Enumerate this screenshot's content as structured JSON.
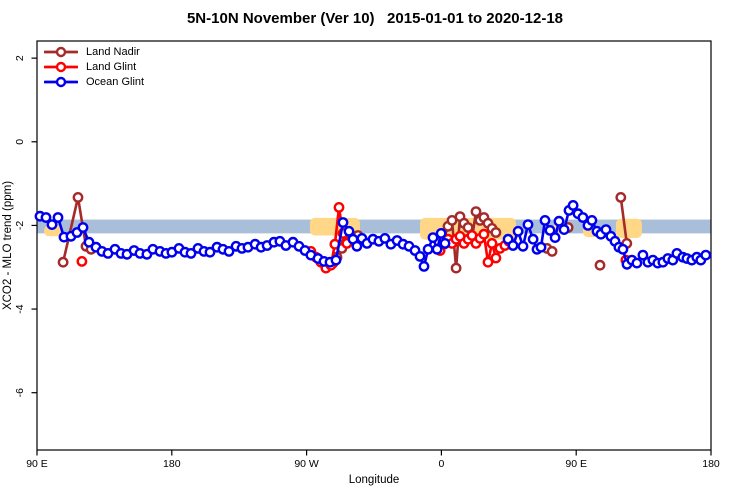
{
  "chart": {
    "title": "5N-10N November (Ver 10)   2015-01-01 to 2020-12-18"
  },
  "chart_data": {
    "type": "line",
    "title": "5N-10N November (Ver 10)   2015-01-01 to 2020-12-18",
    "xlabel": "Longitude",
    "ylabel": "XCO2 - MLO trend (ppm)",
    "grid": false,
    "legend_position": "top-left",
    "x_axis": {
      "domain": [
        0,
        450
      ],
      "ticks": [
        {
          "u": 0,
          "label": "90 E"
        },
        {
          "u": 90,
          "label": "180"
        },
        {
          "u": 180,
          "label": "90 W"
        },
        {
          "u": 270,
          "label": "0"
        },
        {
          "u": 360,
          "label": "90 E"
        },
        {
          "u": 450,
          "label": "180"
        }
      ]
    },
    "y_axis": {
      "domain": [
        -7.37,
        2.41
      ],
      "ticks": [
        2,
        0,
        -2,
        -4,
        -6
      ]
    },
    "reference_band": {
      "y_from": -1.86,
      "y_to": -2.19,
      "color": "#A9BED9"
    },
    "highlight_patches": [
      {
        "u_from": 4.7,
        "u_to": 16.7,
        "y_from": -2.0,
        "y_to": -2.26,
        "color": "#FFD786"
      },
      {
        "u_from": 182.2,
        "u_to": 215.6,
        "y_from": -1.82,
        "y_to": -2.24,
        "color": "#FFD786"
      },
      {
        "u_from": 255.7,
        "u_to": 319.8,
        "y_from": -1.82,
        "y_to": -2.34,
        "color": "#FFD786"
      },
      {
        "u_from": 345.2,
        "u_to": 355.9,
        "y_from": -1.9,
        "y_to": -2.18,
        "color": "#FFD786"
      },
      {
        "u_from": 364.5,
        "u_to": 376.5,
        "y_from": -2.02,
        "y_to": -2.28,
        "color": "#FFD786"
      },
      {
        "u_from": 386.5,
        "u_to": 403.9,
        "y_from": -1.84,
        "y_to": -2.3,
        "color": "#FFD786"
      }
    ],
    "series": [
      {
        "name": "Land Nadir",
        "color": "#A52A2A",
        "segments": [
          [
            [
              17.4,
              -2.88
            ],
            [
              27.4,
              -1.33
            ],
            [
              32.7,
              -2.5
            ],
            [
              36.1,
              -2.57
            ]
          ],
          [
            [
              197.6,
              -2.9
            ],
            [
              200.3,
              -2.76
            ],
            [
              203.6,
              -2.55
            ],
            [
              206.3,
              -2.4
            ],
            [
              208.9,
              -2.21
            ],
            [
              211.6,
              -2.31
            ],
            [
              214.3,
              -2.24
            ]
          ],
          [
            [
              271.8,
              -2.31
            ],
            [
              274.4,
              -2.02
            ],
            [
              277.1,
              -1.88
            ],
            [
              279.8,
              -3.02
            ],
            [
              282.4,
              -1.79
            ],
            [
              285.1,
              -1.95
            ],
            [
              287.8,
              -2.05
            ],
            [
              290.4,
              -2.31
            ],
            [
              293.1,
              -1.67
            ],
            [
              295.8,
              -1.88
            ],
            [
              298.4,
              -1.81
            ],
            [
              301.1,
              -1.95
            ],
            [
              303.8,
              -2.07
            ],
            [
              306.4,
              -2.17
            ]
          ],
          [
            [
              340.5,
              -2.55
            ],
            [
              343.9,
              -2.62
            ]
          ],
          [
            [
              354.6,
              -2.05
            ]
          ],
          [
            [
              375.9,
              -2.95
            ]
          ],
          [
            [
              389.8,
              -1.33
            ],
            [
              393.8,
              -2.43
            ]
          ]
        ]
      },
      {
        "name": "Land Glint",
        "color": "#FF0000",
        "segments": [
          [
            [
              30.0,
              -2.86
            ]
          ],
          [
            [
              182.9,
              -2.62
            ],
            [
              186.2,
              -2.76
            ],
            [
              189.6,
              -2.88
            ],
            [
              192.9,
              -3.02
            ],
            [
              196.2,
              -2.95
            ],
            [
              198.9,
              -2.45
            ],
            [
              201.6,
              -1.57
            ],
            [
              204.3,
              -2.19
            ],
            [
              206.9,
              -2.43
            ]
          ],
          [
            [
              269.1,
              -2.6
            ],
            [
              271.8,
              -2.45
            ],
            [
              274.4,
              -2.33
            ],
            [
              277.1,
              -2.43
            ],
            [
              279.8,
              -2.33
            ],
            [
              282.4,
              -2.26
            ],
            [
              285.1,
              -2.43
            ],
            [
              287.8,
              -2.33
            ],
            [
              290.4,
              -2.24
            ],
            [
              293.1,
              -2.43
            ],
            [
              295.8,
              -2.31
            ],
            [
              298.4,
              -2.21
            ],
            [
              301.1,
              -2.88
            ],
            [
              303.8,
              -2.43
            ],
            [
              306.4,
              -2.78
            ],
            [
              309.1,
              -2.55
            ],
            [
              312.4,
              -2.48
            ],
            [
              315.1,
              -2.38
            ]
          ],
          [
            [
              393.2,
              -2.83
            ]
          ]
        ]
      },
      {
        "name": "Ocean Glint",
        "color": "#0000EE",
        "segments": [
          [
            [
              2.0,
              -1.78
            ],
            [
              6.0,
              -1.81
            ],
            [
              10.0,
              -1.98
            ],
            [
              14.0,
              -1.81
            ],
            [
              18.0,
              -2.28
            ],
            [
              22.7,
              -2.26
            ],
            [
              26.7,
              -2.17
            ],
            [
              30.7,
              -2.05
            ],
            [
              34.7,
              -2.4
            ],
            [
              39.4,
              -2.52
            ],
            [
              43.4,
              -2.62
            ],
            [
              47.4,
              -2.67
            ],
            [
              52.1,
              -2.57
            ],
            [
              56.1,
              -2.67
            ],
            [
              60.1,
              -2.69
            ],
            [
              64.8,
              -2.6
            ],
            [
              68.8,
              -2.67
            ],
            [
              73.4,
              -2.69
            ],
            [
              77.4,
              -2.57
            ],
            [
              82.1,
              -2.62
            ],
            [
              86.1,
              -2.67
            ],
            [
              90.1,
              -2.64
            ],
            [
              94.8,
              -2.55
            ],
            [
              98.8,
              -2.64
            ],
            [
              102.8,
              -2.67
            ],
            [
              107.5,
              -2.55
            ],
            [
              111.5,
              -2.62
            ],
            [
              115.5,
              -2.64
            ],
            [
              120.2,
              -2.52
            ],
            [
              124.2,
              -2.57
            ],
            [
              128.2,
              -2.62
            ],
            [
              132.9,
              -2.5
            ],
            [
              136.9,
              -2.55
            ],
            [
              140.9,
              -2.52
            ],
            [
              145.6,
              -2.45
            ],
            [
              149.6,
              -2.52
            ],
            [
              153.6,
              -2.48
            ],
            [
              158.2,
              -2.4
            ],
            [
              162.2,
              -2.38
            ],
            [
              166.2,
              -2.48
            ],
            [
              170.9,
              -2.4
            ],
            [
              174.9,
              -2.5
            ],
            [
              178.9,
              -2.6
            ],
            [
              182.9,
              -2.71
            ],
            [
              187.6,
              -2.79
            ],
            [
              191.6,
              -2.86
            ],
            [
              195.6,
              -2.88
            ],
            [
              199.6,
              -2.83
            ],
            [
              204.3,
              -1.93
            ],
            [
              208.3,
              -2.14
            ],
            [
              211.0,
              -2.33
            ],
            [
              213.6,
              -2.5
            ],
            [
              217.0,
              -2.31
            ],
            [
              220.3,
              -2.43
            ],
            [
              224.3,
              -2.33
            ],
            [
              228.3,
              -2.38
            ],
            [
              232.3,
              -2.31
            ],
            [
              236.3,
              -2.45
            ],
            [
              240.4,
              -2.36
            ],
            [
              244.4,
              -2.45
            ],
            [
              248.4,
              -2.5
            ],
            [
              252.4,
              -2.6
            ],
            [
              255.7,
              -2.74
            ],
            [
              258.4,
              -2.98
            ],
            [
              261.1,
              -2.57
            ],
            [
              264.4,
              -2.29
            ],
            [
              267.1,
              -2.57
            ],
            [
              269.8,
              -2.19
            ],
            [
              272.4,
              -2.43
            ]
          ],
          [
            [
              314.5,
              -2.33
            ],
            [
              317.8,
              -2.48
            ],
            [
              321.2,
              -2.14
            ],
            [
              324.5,
              -2.5
            ],
            [
              327.8,
              -1.98
            ],
            [
              331.2,
              -2.33
            ],
            [
              333.8,
              -2.57
            ],
            [
              336.5,
              -2.52
            ],
            [
              339.2,
              -1.88
            ],
            [
              342.5,
              -2.12
            ],
            [
              345.9,
              -2.29
            ],
            [
              348.5,
              -1.9
            ],
            [
              351.9,
              -2.1
            ],
            [
              355.2,
              -1.64
            ],
            [
              357.9,
              -1.52
            ],
            [
              361.2,
              -1.72
            ],
            [
              364.5,
              -1.81
            ],
            [
              367.9,
              -2.0
            ],
            [
              370.5,
              -1.88
            ],
            [
              373.9,
              -2.14
            ],
            [
              376.5,
              -2.21
            ],
            [
              379.9,
              -2.1
            ],
            [
              383.2,
              -2.26
            ],
            [
              385.9,
              -2.38
            ],
            [
              388.5,
              -2.52
            ],
            [
              391.2,
              -2.57
            ],
            [
              393.9,
              -2.93
            ],
            [
              397.2,
              -2.83
            ],
            [
              400.5,
              -2.9
            ],
            [
              404.5,
              -2.71
            ],
            [
              407.9,
              -2.88
            ],
            [
              411.2,
              -2.83
            ],
            [
              414.5,
              -2.9
            ],
            [
              417.9,
              -2.88
            ],
            [
              421.2,
              -2.79
            ],
            [
              424.5,
              -2.83
            ],
            [
              427.2,
              -2.67
            ],
            [
              431.2,
              -2.76
            ],
            [
              433.9,
              -2.79
            ],
            [
              437.2,
              -2.83
            ],
            [
              440.5,
              -2.76
            ],
            [
              443.2,
              -2.83
            ],
            [
              446.5,
              -2.71
            ]
          ]
        ]
      }
    ]
  }
}
